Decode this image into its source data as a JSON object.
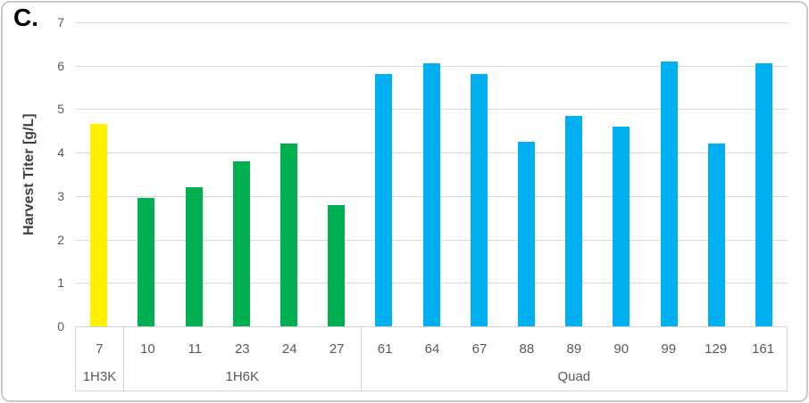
{
  "panel_label": "C.",
  "chart_data": {
    "type": "bar",
    "title": "",
    "xlabel": "",
    "ylabel": "Harvest Titer [g/L]",
    "ylim": [
      0,
      7
    ],
    "yticks": [
      0,
      1,
      2,
      3,
      4,
      5,
      6,
      7
    ],
    "grid": "horizontal",
    "legend_position": "none",
    "categories": [
      "7",
      "10",
      "11",
      "23",
      "24",
      "27",
      "61",
      "64",
      "67",
      "88",
      "89",
      "90",
      "99",
      "129",
      "161"
    ],
    "values": [
      4.65,
      2.95,
      3.2,
      3.8,
      4.2,
      2.8,
      5.8,
      6.05,
      5.8,
      4.25,
      4.85,
      4.6,
      6.1,
      4.2,
      6.05
    ],
    "groups": [
      {
        "label": "1H3K",
        "color": "#FFF100",
        "bars": [
          {
            "label": "7",
            "value": 4.65
          }
        ]
      },
      {
        "label": "1H6K",
        "color": "#00B050",
        "bars": [
          {
            "label": "10",
            "value": 2.95
          },
          {
            "label": "11",
            "value": 3.2
          },
          {
            "label": "23",
            "value": 3.8
          },
          {
            "label": "24",
            "value": 4.2
          },
          {
            "label": "27",
            "value": 2.8
          }
        ]
      },
      {
        "label": "Quad",
        "color": "#00B0F0",
        "bars": [
          {
            "label": "61",
            "value": 5.8
          },
          {
            "label": "64",
            "value": 6.05
          },
          {
            "label": "67",
            "value": 5.8
          },
          {
            "label": "88",
            "value": 4.25
          },
          {
            "label": "89",
            "value": 4.85
          },
          {
            "label": "90",
            "value": 4.6
          },
          {
            "label": "99",
            "value": 6.1
          },
          {
            "label": "129",
            "value": 4.2
          },
          {
            "label": "161",
            "value": 6.05
          }
        ]
      }
    ]
  },
  "style": {
    "background": "#FFFFFF",
    "gridline_color": "#D9D9D9",
    "axis_text_color": "#595959",
    "axis_title_color": "#3F3F3F",
    "table_border_color": "#D2D2D2",
    "frame_border_color": "#C9C9C9"
  }
}
